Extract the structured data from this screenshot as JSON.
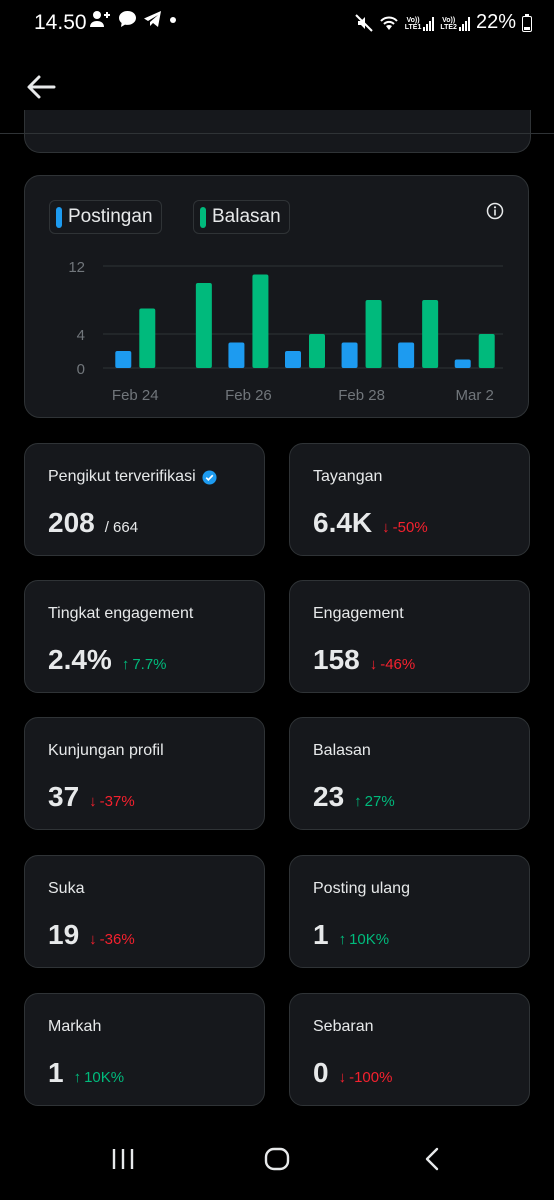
{
  "status_bar": {
    "time": "14.50",
    "battery": "22%",
    "sim1_label": "LTE1",
    "sim2_label": "LTE2",
    "volte_label": "Vo))"
  },
  "chart": {
    "legend": [
      {
        "label": "Postingan",
        "color": "#1d9bf0"
      },
      {
        "label": "Balasan",
        "color": "#00ba7c"
      }
    ]
  },
  "chart_data": {
    "type": "bar",
    "categories": [
      "Feb 24",
      "Feb 25",
      "Feb 26",
      "Feb 27",
      "Feb 28",
      "Mar 1",
      "Mar 2"
    ],
    "x_tick_labels": [
      "Feb 24",
      "Feb 26",
      "Feb 28",
      "Mar 2"
    ],
    "y_ticks": [
      "0",
      "4",
      "12"
    ],
    "ylim": [
      0,
      12
    ],
    "series": [
      {
        "name": "Postingan",
        "color": "#1d9bf0",
        "values": [
          2,
          0,
          3,
          2,
          3,
          3,
          1
        ]
      },
      {
        "name": "Balasan",
        "color": "#00ba7c",
        "values": [
          7,
          10,
          11,
          4,
          8,
          8,
          4
        ]
      }
    ],
    "grid": true
  },
  "stats": [
    {
      "label": "Pengikut terverifikasi",
      "value": "208",
      "sub": "/ 664",
      "verified": true
    },
    {
      "label": "Tayangan",
      "value": "6.4K",
      "change": "-50%",
      "direction": "down"
    },
    {
      "label": "Tingkat engagement",
      "value": "2.4%",
      "change": "7.7%",
      "direction": "up"
    },
    {
      "label": "Engagement",
      "value": "158",
      "change": "-46%",
      "direction": "down"
    },
    {
      "label": "Kunjungan profil",
      "value": "37",
      "change": "-37%",
      "direction": "down"
    },
    {
      "label": "Balasan",
      "value": "23",
      "change": "27%",
      "direction": "up"
    },
    {
      "label": "Suka",
      "value": "19",
      "change": "-36%",
      "direction": "down"
    },
    {
      "label": "Posting ulang",
      "value": "1",
      "change": "10K%",
      "direction": "up"
    },
    {
      "label": "Markah",
      "value": "1",
      "change": "10K%",
      "direction": "up"
    },
    {
      "label": "Sebaran",
      "value": "0",
      "change": "-100%",
      "direction": "down"
    }
  ],
  "colors": {
    "up": "#00ba7c",
    "down": "#f4212e",
    "verified": "#1d9bf0"
  }
}
